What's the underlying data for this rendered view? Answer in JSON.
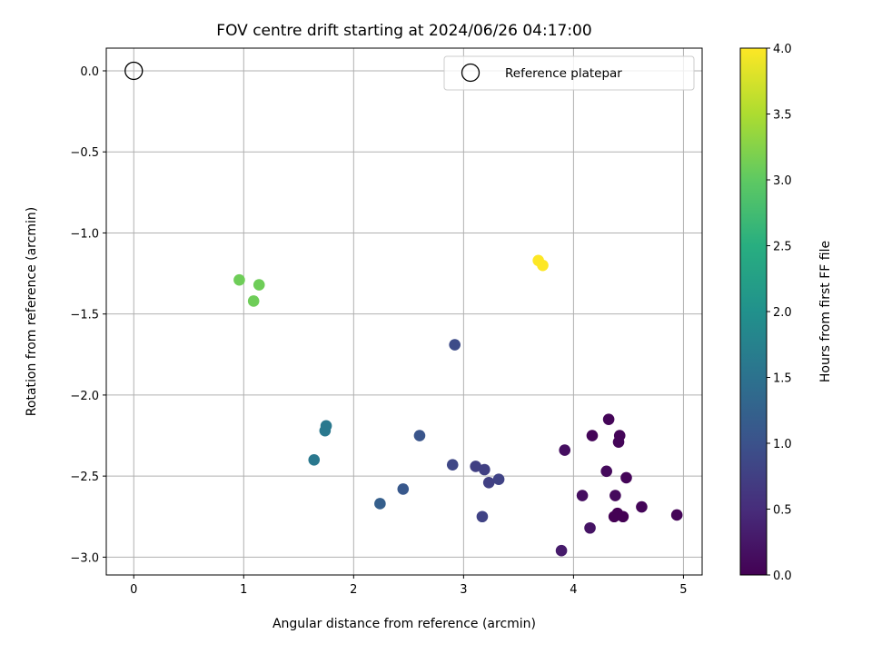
{
  "chart_data": {
    "type": "scatter",
    "title": "FOV centre drift starting at 2024/06/26 04:17:00",
    "xlabel": "Angular distance from reference (arcmin)",
    "ylabel": "Rotation from reference (arcmin)",
    "xlim": [
      -0.25,
      5.17
    ],
    "ylim": [
      -3.11,
      0.14
    ],
    "xticks": [
      "0",
      "1",
      "2",
      "3",
      "4",
      "5"
    ],
    "yticks": [
      "0.0",
      "−0.5",
      "−1.0",
      "−1.5",
      "−2.0",
      "−2.5",
      "−3.0"
    ],
    "grid": true,
    "legend": {
      "placement": "top-right",
      "entries": [
        "Reference platepar"
      ]
    },
    "reference_point": {
      "x": 0.0,
      "y": 0.0,
      "marker": "open-circle"
    },
    "colorbar": {
      "label": "Hours from first FF file",
      "range": [
        0.0,
        4.0
      ],
      "ticks": [
        "0.0",
        "0.5",
        "1.0",
        "1.5",
        "2.0",
        "2.5",
        "3.0",
        "3.5",
        "4.0"
      ],
      "colormap": "viridis"
    },
    "points": [
      {
        "x": 4.32,
        "y": -2.15,
        "c": 0.05
      },
      {
        "x": 4.17,
        "y": -2.25,
        "c": 0.05
      },
      {
        "x": 4.42,
        "y": -2.25,
        "c": 0.05
      },
      {
        "x": 4.41,
        "y": -2.29,
        "c": 0.05
      },
      {
        "x": 3.92,
        "y": -2.34,
        "c": 0.15
      },
      {
        "x": 4.3,
        "y": -2.47,
        "c": 0.1
      },
      {
        "x": 4.48,
        "y": -2.51,
        "c": 0.05
      },
      {
        "x": 4.08,
        "y": -2.62,
        "c": 0.15
      },
      {
        "x": 4.38,
        "y": -2.62,
        "c": 0.1
      },
      {
        "x": 4.62,
        "y": -2.69,
        "c": 0.05
      },
      {
        "x": 4.4,
        "y": -2.73,
        "c": 0.0
      },
      {
        "x": 4.37,
        "y": -2.75,
        "c": 0.0
      },
      {
        "x": 4.45,
        "y": -2.75,
        "c": 0.0
      },
      {
        "x": 4.94,
        "y": -2.74,
        "c": 0.05
      },
      {
        "x": 4.15,
        "y": -2.82,
        "c": 0.2
      },
      {
        "x": 3.89,
        "y": -2.96,
        "c": 0.3
      },
      {
        "x": 2.92,
        "y": -1.69,
        "c": 0.9
      },
      {
        "x": 3.11,
        "y": -2.44,
        "c": 0.75
      },
      {
        "x": 3.19,
        "y": -2.46,
        "c": 0.75
      },
      {
        "x": 3.23,
        "y": -2.54,
        "c": 0.75
      },
      {
        "x": 3.32,
        "y": -2.52,
        "c": 0.8
      },
      {
        "x": 2.9,
        "y": -2.43,
        "c": 0.85
      },
      {
        "x": 3.17,
        "y": -2.75,
        "c": 0.8
      },
      {
        "x": 2.6,
        "y": -2.25,
        "c": 1.05
      },
      {
        "x": 2.45,
        "y": -2.58,
        "c": 1.1
      },
      {
        "x": 2.24,
        "y": -2.67,
        "c": 1.2
      },
      {
        "x": 1.75,
        "y": -2.19,
        "c": 1.6
      },
      {
        "x": 1.74,
        "y": -2.22,
        "c": 1.6
      },
      {
        "x": 1.64,
        "y": -2.4,
        "c": 1.6
      },
      {
        "x": 0.96,
        "y": -1.29,
        "c": 3.1
      },
      {
        "x": 1.14,
        "y": -1.32,
        "c": 3.1
      },
      {
        "x": 1.09,
        "y": -1.42,
        "c": 3.1
      },
      {
        "x": 3.68,
        "y": -1.17,
        "c": 4.0
      },
      {
        "x": 3.72,
        "y": -1.2,
        "c": 4.0
      }
    ]
  }
}
